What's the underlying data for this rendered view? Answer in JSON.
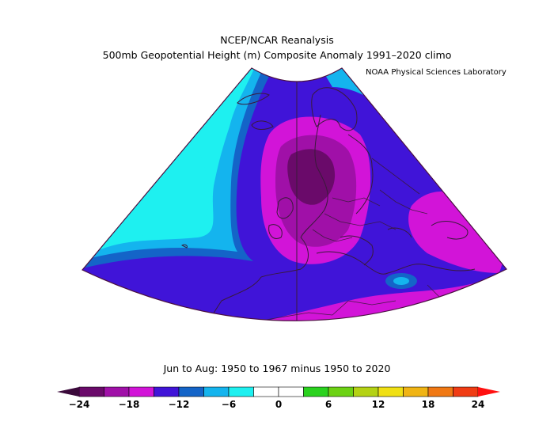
{
  "title": "NCEP/NCAR Reanalysis",
  "subtitle": "500mb Geopotential Height (m) Composite Anomaly 1991–2020 climo",
  "credit": "NOAA Physical Sciences Laboratory",
  "caption": "Jun to Aug: 1950 to 1967 minus 1950 to 2020",
  "colors": {
    "min_arrow": "#3b0a3b",
    "max_arrow": "#ff1010",
    "outline": "#4a1040",
    "land": "#3a1a3a"
  },
  "colorbar": {
    "bins": [
      {
        "from": -24,
        "to": -21,
        "color": "#6a0a6a"
      },
      {
        "from": -21,
        "to": -18,
        "color": "#a010a8"
      },
      {
        "from": -18,
        "to": -15,
        "color": "#d214d8"
      },
      {
        "from": -15,
        "to": -12,
        "color": "#4014d8"
      },
      {
        "from": -12,
        "to": -9,
        "color": "#1464c8"
      },
      {
        "from": -9,
        "to": -6,
        "color": "#14b4ee"
      },
      {
        "from": -6,
        "to": -3,
        "color": "#1ef0f0"
      },
      {
        "from": -3,
        "to": 0,
        "color": "#ffffff"
      },
      {
        "from": 0,
        "to": 3,
        "color": "#ffffff"
      },
      {
        "from": 3,
        "to": 6,
        "color": "#2ad21e"
      },
      {
        "from": 6,
        "to": 9,
        "color": "#6cd214"
      },
      {
        "from": 9,
        "to": 12,
        "color": "#b4d214"
      },
      {
        "from": 12,
        "to": 15,
        "color": "#f0e014"
      },
      {
        "from": 15,
        "to": 18,
        "color": "#f0b414"
      },
      {
        "from": 18,
        "to": 21,
        "color": "#f07814"
      },
      {
        "from": 21,
        "to": 24,
        "color": "#f03c14"
      }
    ],
    "ticks": [
      "−24",
      "−18",
      "−12",
      "−6",
      "0",
      "6",
      "12",
      "18",
      "24"
    ]
  },
  "regions": [
    {
      "name": "western-atlantic-cyan-region",
      "color": "#1ef0f0"
    },
    {
      "name": "mid-atlantic-light-blue-band",
      "color": "#14b4ee"
    },
    {
      "name": "blue-band",
      "color": "#1464c8"
    },
    {
      "name": "indigo-band",
      "color": "#4014d8"
    },
    {
      "name": "magenta-core",
      "color": "#d214d8"
    },
    {
      "name": "purple-core",
      "color": "#a010a8"
    },
    {
      "name": "dark-purple-center",
      "color": "#6a0a6a"
    }
  ]
}
